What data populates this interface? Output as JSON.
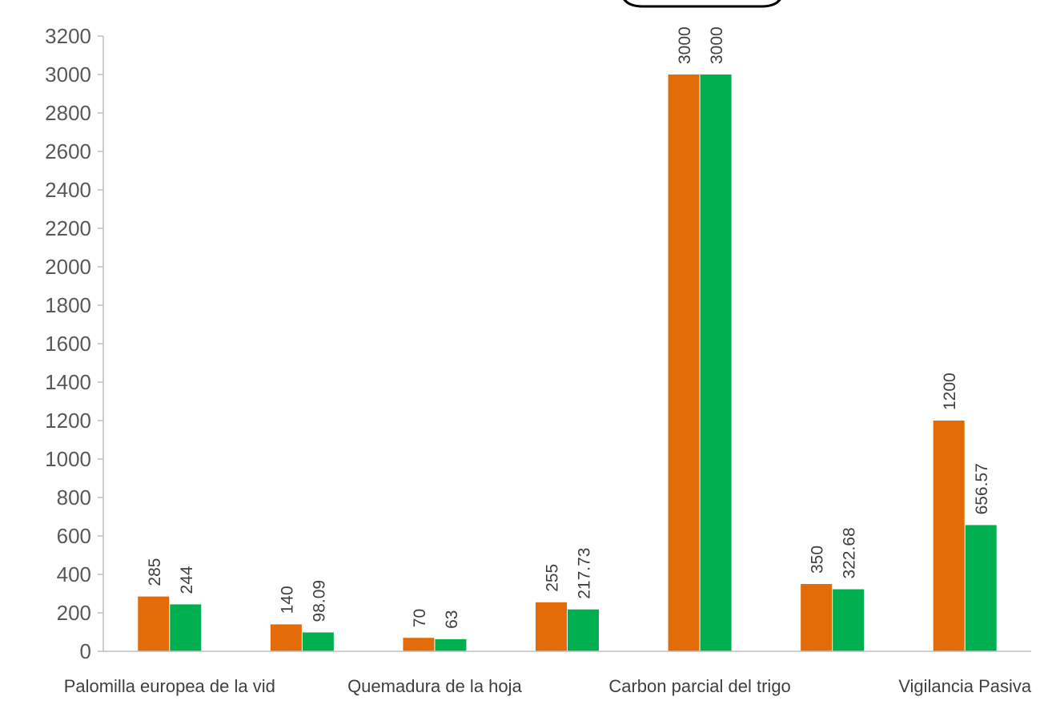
{
  "chart_data": {
    "type": "bar",
    "title": "",
    "xlabel": "",
    "ylabel": "",
    "ylim": [
      0,
      3200
    ],
    "yticks": [
      0,
      200,
      400,
      600,
      800,
      1000,
      1200,
      1400,
      1600,
      1800,
      2000,
      2200,
      2400,
      2600,
      2800,
      3000,
      3200
    ],
    "grid": false,
    "legend": "none",
    "categories": [
      "Palomilla europea de la vid",
      "",
      "Quemadura de la hoja",
      "",
      "Carbon parcial del trigo",
      "",
      "Vigilancia Pasiva"
    ],
    "series": [
      {
        "color": "#E36C09",
        "values": [
          285,
          140,
          70,
          255,
          3000,
          350,
          1200
        ],
        "labels": [
          "285",
          "140",
          "70",
          "255",
          "3000",
          "350",
          "1200"
        ]
      },
      {
        "color": "#00B050",
        "values": [
          244,
          98.09,
          63,
          217.73,
          3000,
          322.68,
          656.57
        ],
        "labels": [
          "244",
          "98.09",
          "63",
          "217.73",
          "3000",
          "322.68",
          "656.57"
        ]
      }
    ]
  }
}
